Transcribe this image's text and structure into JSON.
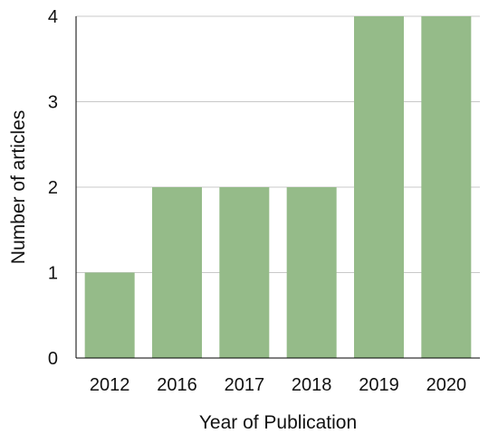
{
  "chart_data": {
    "type": "bar",
    "categories": [
      "2012",
      "2016",
      "2017",
      "2018",
      "2019",
      "2020"
    ],
    "values": [
      1,
      2,
      2,
      2,
      4,
      4
    ],
    "title": "",
    "xlabel": "Year of Publication",
    "ylabel": "Number of articles",
    "ylim": [
      0,
      4
    ],
    "yticks": [
      "0",
      "1",
      "2",
      "3",
      "4"
    ],
    "grid": true,
    "bar_color": "#95bb89"
  }
}
